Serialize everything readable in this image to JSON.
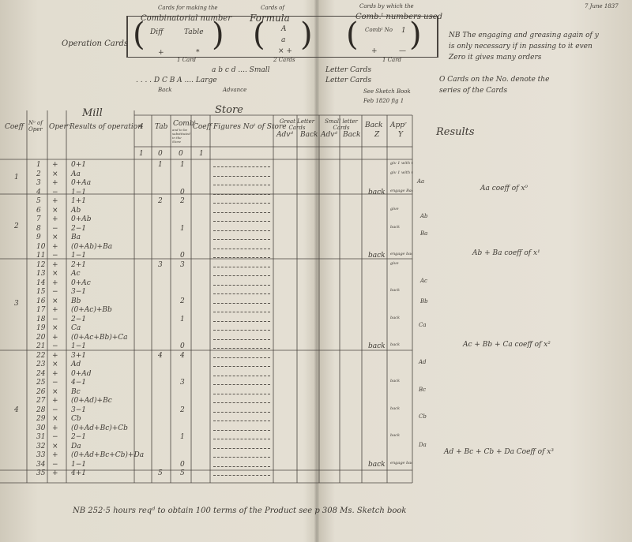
{
  "top_right_date": "7 June 1837",
  "header": {
    "operation_cards": "Operation Cards",
    "card_making_label": "Cards for making the",
    "combinatorial_number": "Combinatorial number",
    "diff": "Diff",
    "table": "Table",
    "plus": "+",
    "star": "*",
    "one_card": "1 Card",
    "cards_of_label": "Cards of",
    "formula": "Formula",
    "formula_A": "A",
    "formula_a": "a",
    "formula_xplus": "×  +",
    "two_cards": "2 Cards",
    "cards_used_label": "Cards by which the",
    "comb_numbers_used": "Comb.ᵗ numbers used",
    "combᵗ_no": "Combᵗ No",
    "one": "1",
    "plus2": "+",
    "dash2": "—",
    "one_card2": "1 Card",
    "letters_small": "a    b    c    d  ....  Small",
    "small_letter_cards": "Letter Cards",
    "letters_large": ". . . . D   C   B   A  ....  Large",
    "large_letter_cards": "Letter Cards",
    "back": "Back",
    "advance": "Advance",
    "sketch_book": "See Sketch Book",
    "sketch_book_ref": "Feb 1820 fig 1",
    "note_nb": "NB  The engaging and greasing again of y is only necessary if in passing to it even Zero it gives many orders",
    "note_cards": "O  Cards on the No. denote the series of the Cards"
  },
  "columns": {
    "coeff": "Coeff",
    "no_of_oper": "Nᵒ of Oper",
    "oper": "Operⁿ",
    "mill": "Mill",
    "results_of_operation": "Results of operation",
    "store": "Store",
    "four": "4",
    "tab": "Tab",
    "comb": "Combᵗ",
    "comb_sub": "and to be substituted in the Store",
    "coeff2": "Coeff",
    "figures_of_store": "Figures Noᵗ of Store",
    "great_letter_cards": "Great Letter Cards",
    "adv": "Advᵈ",
    "back": "Back",
    "small_letter_cards": "Small letter Cards",
    "adv2": "Advᵈ",
    "back2": "Back",
    "back_z": "Back",
    "appr": "Appʳ",
    "z": "Z",
    "y": "Y",
    "results": "Results",
    "row_init": [
      "1",
      "0",
      "0",
      "1"
    ]
  },
  "rows": [
    {
      "n": "1",
      "op": "+",
      "res": "0+1",
      "tab": "1",
      "comb": "1",
      "back": "",
      "app": "giv 1 with 0 even"
    },
    {
      "n": "2",
      "op": "×",
      "res": "Aa",
      "tab": "",
      "comb": "",
      "back": "",
      "app": "giv 1 with 0 even"
    },
    {
      "n": "3",
      "op": "+",
      "res": "0+Aa",
      "tab": "",
      "comb": "",
      "back": "",
      "app": ""
    },
    {
      "n": "4",
      "op": "−",
      "res": "1−1",
      "tab": "",
      "comb": "0",
      "back": "back",
      "app": "engage Back"
    },
    {
      "n": "5",
      "op": "+",
      "res": "1+1",
      "tab": "2",
      "comb": "2",
      "back": "",
      "app": ""
    },
    {
      "n": "6",
      "op": "×",
      "res": "Ab",
      "tab": "",
      "comb": "",
      "back": "",
      "app": "give"
    },
    {
      "n": "7",
      "op": "+",
      "res": "0+Ab",
      "tab": "",
      "comb": "",
      "back": "",
      "app": ""
    },
    {
      "n": "8",
      "op": "−",
      "res": "2−1",
      "tab": "",
      "comb": "1",
      "back": "",
      "app": "back"
    },
    {
      "n": "9",
      "op": "×",
      "res": "Ba",
      "tab": "",
      "comb": "",
      "back": "",
      "app": ""
    },
    {
      "n": "10",
      "op": "+",
      "res": "(0+Ab)+Ba",
      "tab": "",
      "comb": "",
      "back": "",
      "app": ""
    },
    {
      "n": "11",
      "op": "−",
      "res": "1−1",
      "tab": "",
      "comb": "0",
      "back": "back",
      "app": "engage back"
    },
    {
      "n": "12",
      "op": "+",
      "res": "2+1",
      "tab": "3",
      "comb": "3",
      "back": "",
      "app": "give"
    },
    {
      "n": "13",
      "op": "×",
      "res": "Ac",
      "tab": "",
      "comb": "",
      "back": "",
      "app": ""
    },
    {
      "n": "14",
      "op": "+",
      "res": "0+Ac",
      "tab": "",
      "comb": "",
      "back": "",
      "app": ""
    },
    {
      "n": "15",
      "op": "−",
      "res": "3−1",
      "tab": "",
      "comb": "",
      "back": "",
      "app": "back"
    },
    {
      "n": "16",
      "op": "×",
      "res": "Bb",
      "tab": "",
      "comb": "2",
      "back": "",
      "app": ""
    },
    {
      "n": "17",
      "op": "+",
      "res": "(0+Ac)+Bb",
      "tab": "",
      "comb": "",
      "back": "",
      "app": ""
    },
    {
      "n": "18",
      "op": "−",
      "res": "2−1",
      "tab": "",
      "comb": "1",
      "back": "",
      "app": "back"
    },
    {
      "n": "19",
      "op": "×",
      "res": "Ca",
      "tab": "",
      "comb": "",
      "back": "",
      "app": ""
    },
    {
      "n": "20",
      "op": "+",
      "res": "(0+Ac+Bb)+Ca",
      "tab": "",
      "comb": "",
      "back": "",
      "app": ""
    },
    {
      "n": "21",
      "op": "−",
      "res": "1−1",
      "tab": "",
      "comb": "0",
      "back": "back",
      "app": "back"
    },
    {
      "n": "22",
      "op": "+",
      "res": "3+1",
      "tab": "4",
      "comb": "4",
      "back": "",
      "app": ""
    },
    {
      "n": "23",
      "op": "×",
      "res": "Ad",
      "tab": "",
      "comb": "",
      "back": "",
      "app": ""
    },
    {
      "n": "24",
      "op": "+",
      "res": "0+Ad",
      "tab": "",
      "comb": "",
      "back": "",
      "app": ""
    },
    {
      "n": "25",
      "op": "−",
      "res": "4−1",
      "tab": "",
      "comb": "3",
      "back": "",
      "app": "back"
    },
    {
      "n": "26",
      "op": "×",
      "res": "Bc",
      "tab": "",
      "comb": "",
      "back": "",
      "app": ""
    },
    {
      "n": "27",
      "op": "+",
      "res": "(0+Ad)+Bc",
      "tab": "",
      "comb": "",
      "back": "",
      "app": ""
    },
    {
      "n": "28",
      "op": "−",
      "res": "3−1",
      "tab": "",
      "comb": "2",
      "back": "",
      "app": "back"
    },
    {
      "n": "29",
      "op": "×",
      "res": "Cb",
      "tab": "",
      "comb": "",
      "back": "",
      "app": ""
    },
    {
      "n": "30",
      "op": "+",
      "res": "(0+Ad+Bc)+Cb",
      "tab": "",
      "comb": "",
      "back": "",
      "app": ""
    },
    {
      "n": "31",
      "op": "−",
      "res": "2−1",
      "tab": "",
      "comb": "1",
      "back": "",
      "app": "back"
    },
    {
      "n": "32",
      "op": "×",
      "res": "Da",
      "tab": "",
      "comb": "",
      "back": "",
      "app": ""
    },
    {
      "n": "33",
      "op": "+",
      "res": "(0+Ad+Bc+Cb)+Da",
      "tab": "",
      "comb": "",
      "back": "",
      "app": ""
    },
    {
      "n": "34",
      "op": "−",
      "res": "1−1",
      "tab": "",
      "comb": "0",
      "back": "back",
      "app": "engage back"
    },
    {
      "n": "35",
      "op": "+",
      "res": "4+1",
      "tab": "5",
      "comb": "5",
      "back": "",
      "app": ""
    }
  ],
  "coeff_groups": [
    "1",
    "2",
    "3",
    "4"
  ],
  "side_letters": [
    "Aa",
    "Ab",
    "Ba",
    "Ac",
    "Bb",
    "Ca",
    "Ad",
    "Bc",
    "Cb",
    "Da"
  ],
  "results": [
    "Aa coeff of x⁰",
    "Ab + Ba coeff of x¹",
    "Ac + Bb + Ca coeff of x²",
    "Ad + Bc + Cb + Da Coeff of x³"
  ],
  "footer": "NB  252·5 hours reqᵈ to obtain 100 terms of the Product see p 308 Ms. Sketch book"
}
